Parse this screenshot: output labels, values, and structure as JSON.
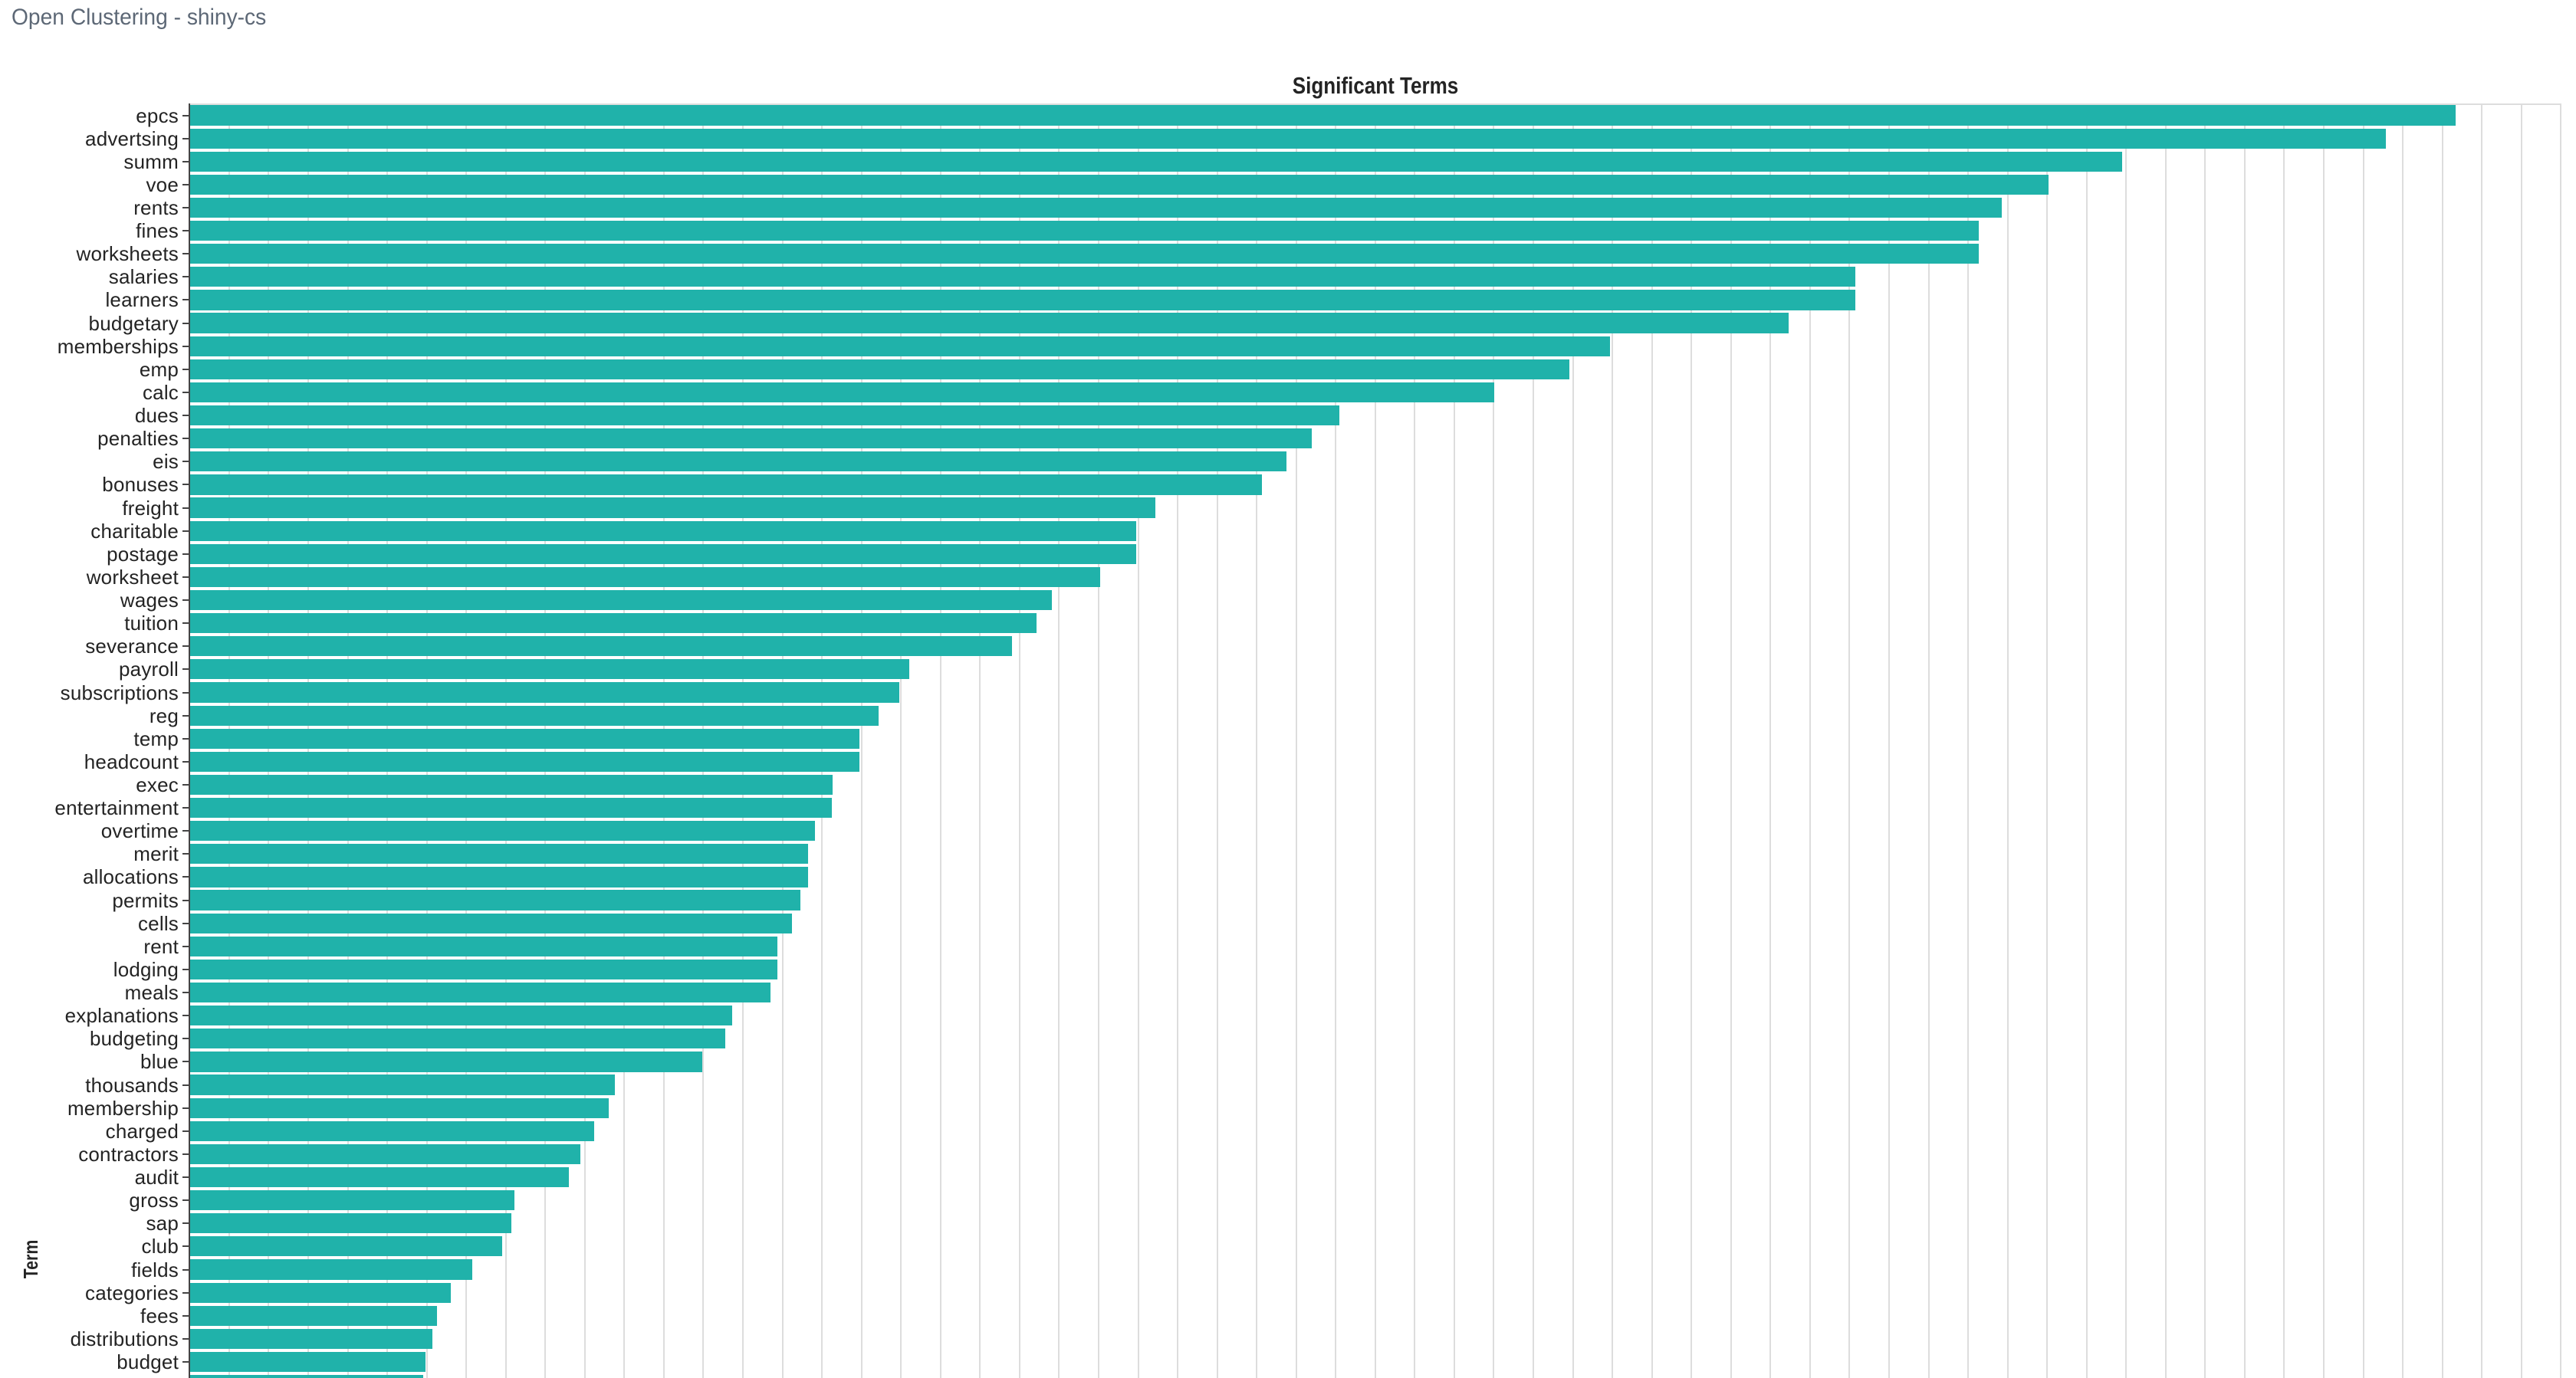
{
  "app": {
    "header_title": "Open Clustering - shiny-cs"
  },
  "colors": {
    "bar": "#20B2AA",
    "gridline": "#dddddd",
    "axis_line": "#444444",
    "chart_text": "#242424",
    "header_text": "#5d6876",
    "background": "#ffffff"
  },
  "chart_data": {
    "type": "bar",
    "orientation": "horizontal",
    "title": "Significant Terms",
    "xlabel": "",
    "ylabel": "Term",
    "legend": false,
    "grid": true,
    "x_axis_tick_labels_visible": false,
    "x_unit_note": "x values are in gridline units; the x-axis tick labels are below the visible viewport (chart is cut off at the bottom of the screenshot), one unit = one vertical gridline",
    "xlim": [
      0,
      60
    ],
    "categories": [
      "epcs",
      "advertsing",
      "summ",
      "voe",
      "rents",
      "fines",
      "worksheets",
      "salaries",
      "learners",
      "budgetary",
      "memberships",
      "emp",
      "calc",
      "dues",
      "penalties",
      "eis",
      "bonuses",
      "freight",
      "charitable",
      "postage",
      "worksheet",
      "wages",
      "tuition",
      "severance",
      "payroll",
      "subscriptions",
      "reg",
      "temp",
      "headcount",
      "exec",
      "entertainment",
      "overtime",
      "merit",
      "allocations",
      "permits",
      "cells",
      "rent",
      "lodging",
      "meals",
      "explanations",
      "budgeting",
      "blue",
      "thousands",
      "membership",
      "charged",
      "contractors",
      "audit",
      "gross",
      "sap",
      "club",
      "fields",
      "categories",
      "fees",
      "distributions",
      "budget",
      ""
    ],
    "values": [
      57.31,
      55.55,
      48.87,
      47.01,
      45.83,
      45.25,
      45.25,
      42.13,
      42.13,
      40.44,
      35.92,
      34.89,
      33.0,
      29.07,
      28.38,
      27.74,
      27.12,
      24.41,
      23.93,
      23.93,
      23.02,
      21.79,
      21.41,
      20.79,
      18.19,
      17.93,
      17.41,
      16.93,
      16.93,
      16.25,
      16.24,
      15.81,
      15.62,
      15.62,
      15.43,
      15.23,
      14.86,
      14.85,
      14.67,
      13.71,
      13.53,
      12.95,
      10.75,
      10.58,
      10.21,
      9.87,
      9.57,
      8.2,
      8.13,
      7.89,
      7.14,
      6.59,
      6.24,
      6.12,
      5.95,
      5.89
    ],
    "last_row_partially_cut": true
  }
}
